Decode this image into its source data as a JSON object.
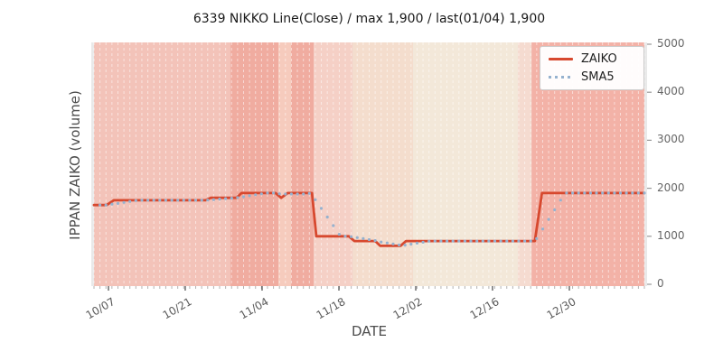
{
  "figure": {
    "title": "6339 NIKKO Line(Close) / max 1,900 / last(01/04) 1,900",
    "xlabel": "DATE",
    "ylabel": "IPPAN ZAIKO (volume)"
  },
  "legend": {
    "position": "upper-right",
    "items": [
      {
        "label": "ZAIKO",
        "style": "solid",
        "color": "#d7482e"
      },
      {
        "label": "SMA5",
        "style": "dotted",
        "color": "#96b2cf"
      }
    ]
  },
  "chart_data": {
    "type": "line",
    "title": "6339 NIKKO Line(Close) / max 1,900 / last(01/04) 1,900",
    "xlabel": "DATE",
    "ylabel": "IPPAN ZAIKO (volume)",
    "ylim": [
      0,
      5000
    ],
    "y_ticks": [
      0,
      1000,
      2000,
      3000,
      4000,
      5000
    ],
    "x_ticks": [
      {
        "label": "10/07",
        "f": 0.0263
      },
      {
        "label": "10/21",
        "f": 0.1658
      },
      {
        "label": "11/04",
        "f": 0.3054
      },
      {
        "label": "11/18",
        "f": 0.445
      },
      {
        "label": "12/02",
        "f": 0.5846
      },
      {
        "label": "12/16",
        "f": 0.7241
      },
      {
        "label": "12/30",
        "f": 0.8637
      }
    ],
    "grid": "vertical-white-dashed-per-day",
    "legend_position": "upper-right",
    "max_value": 1900,
    "last_date": "01/04",
    "last_value": 1900,
    "series": [
      {
        "name": "ZAIKO",
        "color": "#d7482e",
        "style": "solid",
        "breakpoints": [
          {
            "date": "10/04",
            "f": 0.0,
            "value": 1650
          },
          {
            "date": "10/07",
            "f": 0.023,
            "value": 1650
          },
          {
            "date": "10/08",
            "f": 0.036,
            "value": 1750
          },
          {
            "date": "10/24",
            "f": 0.203,
            "value": 1750
          },
          {
            "date": "10/25",
            "f": 0.212,
            "value": 1800
          },
          {
            "date": "10/31",
            "f": 0.259,
            "value": 1800
          },
          {
            "date": "11/01",
            "f": 0.268,
            "value": 1900
          },
          {
            "date": "11/08",
            "f": 0.33,
            "value": 1900
          },
          {
            "date": "11/09",
            "f": 0.34,
            "value": 1800
          },
          {
            "date": "11/10",
            "f": 0.352,
            "value": 1900
          },
          {
            "date": "11/13",
            "f": 0.396,
            "value": 1900
          },
          {
            "date": "11/14",
            "f": 0.404,
            "value": 1000
          },
          {
            "date": "11/18",
            "f": 0.463,
            "value": 1000
          },
          {
            "date": "11/19",
            "f": 0.473,
            "value": 900
          },
          {
            "date": "11/22",
            "f": 0.511,
            "value": 900
          },
          {
            "date": "11/24",
            "f": 0.52,
            "value": 800
          },
          {
            "date": "11/27",
            "f": 0.557,
            "value": 800
          },
          {
            "date": "11/28",
            "f": 0.567,
            "value": 900
          },
          {
            "date": "12/18",
            "f": 0.801,
            "value": 900
          },
          {
            "date": "12/19",
            "f": 0.814,
            "value": 1900
          },
          {
            "date": "01/04",
            "f": 1.0,
            "value": 1900
          }
        ]
      },
      {
        "name": "SMA5",
        "color": "#96b2cf",
        "style": "dotted",
        "derived": "5-point moving average of ZAIKO"
      }
    ],
    "background_bands": [
      {
        "f0": 0.0,
        "f1": 0.248,
        "color": "#f3c3b9"
      },
      {
        "f0": 0.248,
        "f1": 0.335,
        "color": "#f0aca0"
      },
      {
        "f0": 0.335,
        "f1": 0.358,
        "color": "#f6cbbd"
      },
      {
        "f0": 0.358,
        "f1": 0.399,
        "color": "#f0aca0"
      },
      {
        "f0": 0.399,
        "f1": 0.47,
        "color": "#f5d0c6"
      },
      {
        "f0": 0.47,
        "f1": 0.58,
        "color": "#f4ddcd"
      },
      {
        "f0": 0.58,
        "f1": 0.77,
        "color": "#f3e8d9"
      },
      {
        "f0": 0.77,
        "f1": 0.795,
        "color": "#f5dbd0"
      },
      {
        "f0": 0.795,
        "f1": 1.0,
        "color": "#f3b2a7"
      }
    ]
  }
}
